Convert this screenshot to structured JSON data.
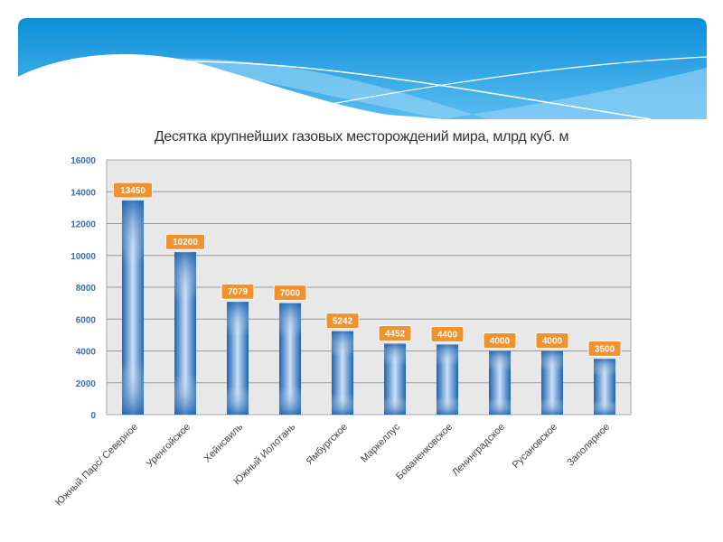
{
  "chart_data": {
    "type": "bar",
    "title": "Десятка крупнейших газовых месторождений мира, млрд куб. м",
    "xlabel": "",
    "ylabel": "",
    "ylim": [
      0,
      16000
    ],
    "yticks": [
      0,
      2000,
      4000,
      6000,
      8000,
      10000,
      12000,
      14000,
      16000
    ],
    "grid": true,
    "categories": [
      "Южный Парс/ Северное",
      "Уренгойское",
      "Хейнсвиль",
      "Южный Иолотань",
      "Ямбургское",
      "Маркеллус",
      "Бованенковское",
      "Ленинградское",
      "Русановское",
      "Заполярное"
    ],
    "values": [
      13450,
      10200,
      7079,
      7000,
      5242,
      4452,
      4400,
      4000,
      4000,
      3500
    ],
    "data_labels": [
      "13450",
      "10200",
      "7079",
      "7000",
      "5242",
      "4452",
      "4400",
      "4000",
      "4000",
      "3500"
    ],
    "colors": {
      "bar": "#2f78c4",
      "label_bg": "#f0922e",
      "plot_bg": "#e8e8e8"
    }
  }
}
